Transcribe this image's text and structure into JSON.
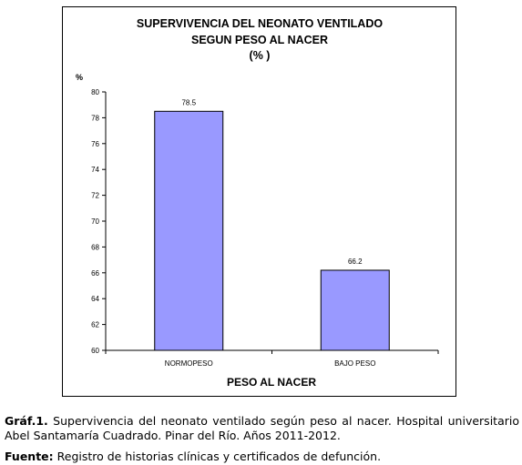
{
  "chart_data": {
    "type": "bar",
    "title_lines": [
      "SUPERVIVENCIA DEL NEONATO VENTILADO",
      "SEGUN PESO AL NACER",
      "(% )"
    ],
    "ylabel": "%",
    "xlabel": "PESO AL NACER",
    "categories": [
      "NORMOPESO",
      "BAJO PESO"
    ],
    "values": [
      78.5,
      66.2
    ],
    "data_labels": [
      "78.5",
      "66.2"
    ],
    "ylim": [
      60,
      80
    ],
    "yticks": [
      60,
      62,
      64,
      66,
      68,
      70,
      72,
      74,
      76,
      78,
      80
    ],
    "bar_color": "#9999ff",
    "grid": false
  },
  "caption": {
    "label": "Gráf.1.",
    "text": " Supervivencia del neonato ventilado según peso al nacer. Hospital universitario Abel Santamaría Cuadrado.   Pinar del Río. Años 2011-2012."
  },
  "source": {
    "label": "Fuente:",
    "text": " Registro de historias clínicas y certificados de defunción."
  }
}
